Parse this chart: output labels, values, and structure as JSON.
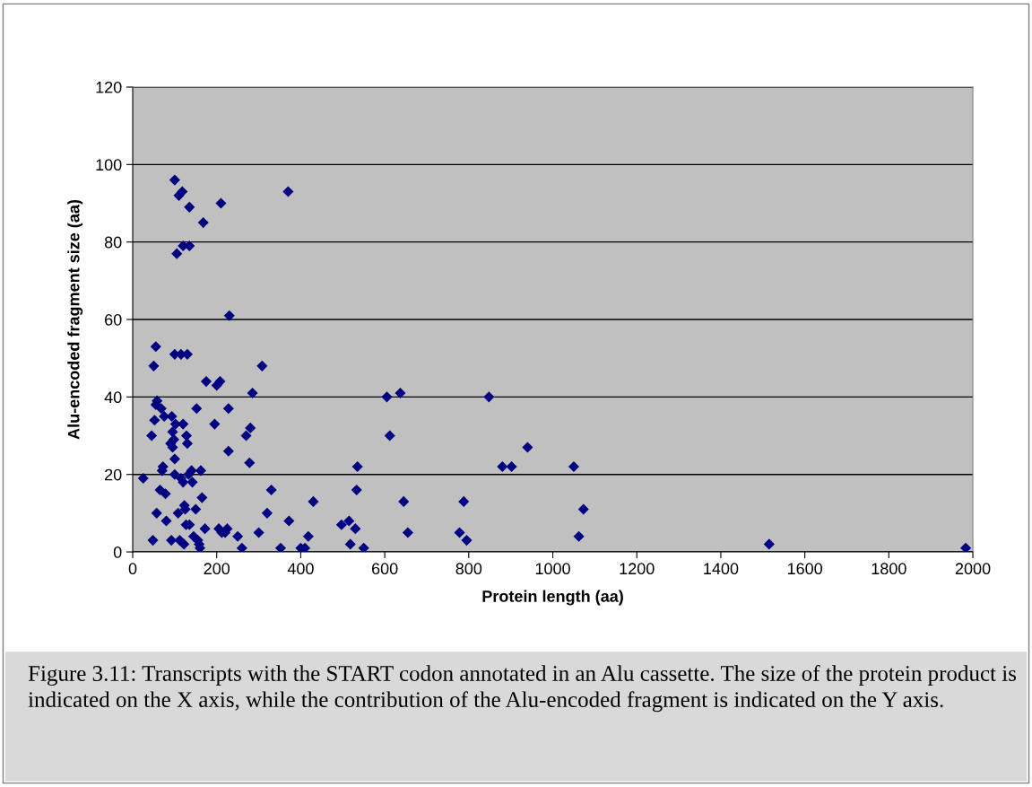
{
  "chart_data": {
    "type": "scatter",
    "xlabel": "Protein length (aa)",
    "ylabel": "Alu-encoded fragment size (aa)",
    "xlim": [
      0,
      2000
    ],
    "xticks": [
      0,
      200,
      400,
      600,
      800,
      1000,
      1200,
      1400,
      1600,
      1800,
      2000
    ],
    "ylim": [
      0,
      120
    ],
    "yticks": [
      0,
      20,
      40,
      60,
      80,
      100,
      120
    ],
    "grid": "y",
    "marker": "diamond",
    "legend": false,
    "annotations": [
      "Figure 3.11: Transcripts with the START codon annotated in an Alu cassette. The size of the protein product is indicated on the X axis, while the contribution of the Alu-encoded fragment is indicated on the Y axis."
    ],
    "series": [
      {
        "color": "#000080",
        "x": [
          25,
          45,
          48,
          50,
          52,
          55,
          55,
          57,
          58,
          65,
          68,
          70,
          72,
          75,
          78,
          80,
          90,
          92,
          93,
          95,
          95,
          98,
          100,
          100,
          100,
          100,
          102,
          105,
          108,
          110,
          112,
          115,
          115,
          118,
          120,
          120,
          120,
          122,
          123,
          125,
          127,
          128,
          130,
          130,
          133,
          135,
          135,
          135,
          140,
          142,
          145,
          150,
          152,
          155,
          158,
          160,
          162,
          165,
          168,
          172,
          175,
          195,
          200,
          205,
          208,
          210,
          212,
          220,
          225,
          228,
          228,
          230,
          250,
          260,
          270,
          278,
          280,
          285,
          300,
          308,
          320,
          330,
          352,
          370,
          372,
          400,
          410,
          418,
          430,
          497,
          515,
          518,
          530,
          533,
          535,
          550,
          605,
          612,
          637,
          645,
          655,
          778,
          788,
          795,
          848,
          880,
          902,
          940,
          1050,
          1062,
          1073,
          1515,
          1983
        ],
        "values": [
          19,
          30,
          3,
          48,
          34,
          53,
          38,
          10,
          39,
          16,
          37,
          21,
          22,
          35,
          15,
          8,
          28,
          3,
          35,
          31,
          27,
          29,
          24,
          20,
          96,
          51,
          33,
          77,
          10,
          92,
          3,
          51,
          19,
          93,
          33,
          18,
          79,
          2,
          12,
          11,
          7,
          30,
          51,
          28,
          20,
          89,
          79,
          7,
          21,
          18,
          4,
          11,
          37,
          3,
          2,
          1,
          21,
          14,
          85,
          6,
          44,
          33,
          43,
          6,
          44,
          90,
          5,
          5,
          6,
          37,
          26,
          61,
          4,
          1,
          30,
          23,
          32,
          41,
          5,
          48,
          10,
          16,
          1,
          93,
          8,
          1,
          1,
          4,
          13,
          7,
          8,
          2,
          6,
          16,
          22,
          1,
          40,
          30,
          41,
          13,
          5,
          5,
          13,
          3,
          40,
          22,
          22,
          27,
          22,
          4,
          11,
          2,
          1
        ]
      }
    ]
  }
}
